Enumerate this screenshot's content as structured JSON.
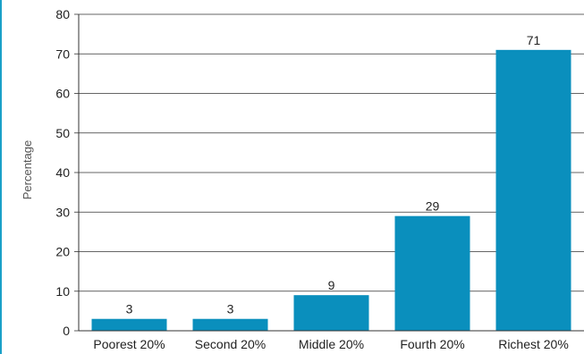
{
  "colors": {
    "bar": "#0a8fbd",
    "axis": "#333333",
    "grid": "#333333",
    "left_rule": "#1aa0c8"
  },
  "chart_data": {
    "type": "bar",
    "categories": [
      "Poorest 20%",
      "Second 20%",
      "Middle 20%",
      "Fourth 20%",
      "Richest 20%"
    ],
    "values": [
      3,
      3,
      9,
      29,
      71
    ],
    "data_labels": [
      "3",
      "3",
      "9",
      "29",
      "71"
    ],
    "title": "",
    "xlabel": "",
    "ylabel": "Percentage",
    "ylim": [
      0,
      80
    ],
    "yticks": [
      "0",
      "10",
      "20",
      "30",
      "40",
      "50",
      "60",
      "70",
      "80"
    ],
    "grid": true,
    "legend": "none"
  }
}
